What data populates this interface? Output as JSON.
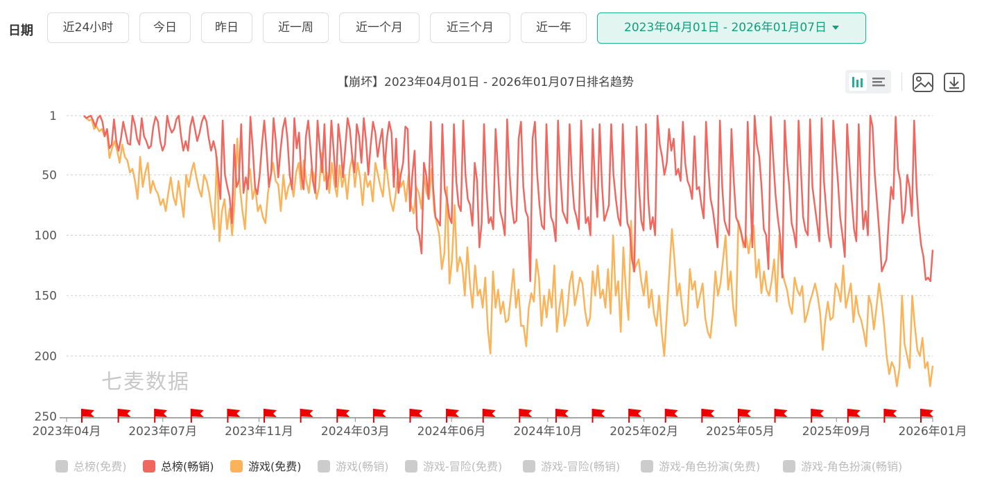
{
  "toolbar": {
    "date_label": "日期",
    "range_buttons": [
      "近24小时",
      "今日",
      "昨日",
      "近一周",
      "近一个月",
      "近三个月",
      "近一年"
    ],
    "date_range_value": "2023年04月01日 - 2026年01月07日"
  },
  "watermark": "七麦数据",
  "icons": {
    "bar_toggle": "bar-chart-icon",
    "list_toggle": "list-icon",
    "image_download": "image-icon",
    "download": "download-icon"
  },
  "colors": {
    "series_grossing": "#f0675f",
    "series_game_free": "#fbb35a",
    "inactive": "#cccccc",
    "accent": "#1ab394"
  },
  "chart_data": {
    "type": "line",
    "title": "【崩坏】2023年04月01日 - 2026年01月07日排名趋势",
    "y_inverted": true,
    "ylim": [
      1,
      250
    ],
    "y_ticks": [
      "1",
      "50",
      "100",
      "150",
      "200",
      "250"
    ],
    "x_tick_labels": [
      "2023年04月",
      "2023年07月",
      "2023年11月",
      "2024年03月",
      "2024年06月",
      "2024年10月",
      "2025年02月",
      "2025年05月",
      "2025年09月",
      "2026年01月"
    ],
    "legend": [
      {
        "name": "总榜(免费)",
        "active": false
      },
      {
        "name": "总榜(畅销)",
        "active": true
      },
      {
        "name": "游戏(免费)",
        "active": true
      },
      {
        "name": "游戏(畅销)",
        "active": false
      },
      {
        "name": "游戏-冒险(免费)",
        "active": false
      },
      {
        "name": "游戏-冒险(畅销)",
        "active": false
      },
      {
        "name": "游戏-角色扮演(免费)",
        "active": false
      },
      {
        "name": "游戏-角色扮演(畅销)",
        "active": false
      }
    ],
    "series": [
      {
        "name": "总榜(畅销)",
        "values": [
          1,
          3,
          2,
          1,
          5,
          10,
          3,
          1,
          6,
          18,
          12,
          28,
          25,
          4,
          22,
          30,
          20,
          6,
          15,
          24,
          25,
          1,
          8,
          20,
          25,
          3,
          18,
          22,
          28,
          26,
          10,
          2,
          6,
          22,
          30,
          25,
          1,
          10,
          15,
          12,
          4,
          1,
          18,
          30,
          22,
          30,
          10,
          2,
          12,
          22,
          15,
          6,
          1,
          6,
          20,
          30,
          22,
          30,
          48,
          70,
          5,
          50,
          60,
          68,
          90,
          25,
          60,
          55,
          8,
          65,
          52,
          62,
          2,
          28,
          60,
          66,
          50,
          25,
          5,
          30,
          60,
          48,
          3,
          22,
          52,
          30,
          12,
          3,
          20,
          50,
          62,
          3,
          28,
          15,
          50,
          62,
          18,
          5,
          28,
          55,
          65,
          5,
          28,
          48,
          8,
          62,
          50,
          5,
          30,
          60,
          8,
          25,
          52,
          28,
          3,
          12,
          35,
          48,
          8,
          18,
          40,
          3,
          22,
          50,
          25,
          6,
          15,
          35,
          22,
          12,
          45,
          20,
          6,
          15,
          60,
          20,
          65,
          50,
          40,
          10,
          12,
          80,
          50,
          30,
          95,
          100,
          115,
          40,
          50,
          70,
          6,
          60,
          85,
          88,
          92,
          8,
          62,
          70,
          85,
          90,
          8,
          55,
          75,
          80,
          5,
          50,
          70,
          75,
          92,
          40,
          55,
          110,
          90,
          8,
          60,
          90,
          85,
          95,
          12,
          45,
          80,
          88,
          100,
          4,
          48,
          75,
          90,
          88,
          20,
          6,
          60,
          80,
          85,
          138,
          20,
          6,
          50,
          75,
          92,
          95,
          8,
          60,
          85,
          90,
          105,
          5,
          50,
          80,
          85,
          90,
          8,
          52,
          78,
          85,
          95,
          5,
          55,
          90,
          85,
          100,
          12,
          60,
          85,
          8,
          58,
          88,
          82,
          75,
          8,
          50,
          70,
          85,
          92,
          8,
          60,
          90,
          95,
          120,
          130,
          10,
          60,
          88,
          96,
          8,
          70,
          95,
          85,
          100,
          1,
          25,
          35,
          50,
          40,
          12,
          30,
          20,
          50,
          45,
          55,
          6,
          40,
          55,
          60,
          70,
          18,
          62,
          60,
          75,
          86,
          6,
          45,
          70,
          80,
          95,
          110,
          5,
          60,
          88,
          95,
          100,
          12,
          55,
          85,
          90,
          96,
          105,
          110,
          6,
          55,
          110,
          1,
          25,
          35,
          60,
          95,
          100,
          128,
          2,
          35,
          65,
          85,
          100,
          135,
          5,
          40,
          60,
          90,
          98,
          110,
          5,
          45,
          85,
          96,
          100,
          4,
          60,
          75,
          90,
          105,
          3,
          55,
          80,
          100,
          110,
          5,
          30,
          55,
          85,
          100,
          118,
          8,
          40,
          70,
          95,
          105,
          8,
          55,
          95,
          80,
          100,
          1,
          10,
          50,
          75,
          100,
          130,
          125,
          120,
          88,
          60,
          70,
          2,
          45,
          55,
          90,
          80,
          50,
          60,
          84,
          5,
          60,
          90,
          108,
          118,
          137,
          135,
          138,
          112
        ],
        "color": "#f0675f"
      },
      {
        "name": "游戏(免费)",
        "values": [
          1,
          3,
          5,
          4,
          12,
          10,
          14,
          12,
          18,
          15,
          36,
          28,
          22,
          30,
          40,
          25,
          35,
          38,
          48,
          45,
          55,
          70,
          35,
          60,
          48,
          40,
          65,
          55,
          62,
          66,
          75,
          70,
          80,
          65,
          52,
          68,
          75,
          55,
          70,
          85,
          50,
          60,
          48,
          40,
          52,
          62,
          68,
          50,
          55,
          65,
          80,
          95,
          35,
          105,
          80,
          70,
          95,
          78,
          100,
          70,
          20,
          60,
          80,
          95,
          55,
          45,
          70,
          60,
          80,
          75,
          85,
          90,
          65,
          52,
          40,
          55,
          58,
          80,
          50,
          70,
          60,
          55,
          68,
          48,
          40,
          62,
          38,
          55,
          65,
          45,
          50,
          70,
          60,
          32,
          55,
          48,
          65,
          40,
          58,
          68,
          42,
          60,
          50,
          70,
          45,
          35,
          60,
          40,
          52,
          75,
          48,
          60,
          55,
          72,
          40,
          50,
          60,
          68,
          38,
          55,
          72,
          80,
          65,
          45,
          60,
          55,
          72,
          50,
          75,
          82,
          60,
          65,
          78,
          50,
          65,
          70,
          45,
          80,
          90,
          100,
          128,
          115,
          60,
          140,
          120,
          75,
          130,
          118,
          125,
          150,
          110,
          140,
          160,
          125,
          150,
          145,
          160,
          135,
          178,
          198,
          130,
          160,
          145,
          165,
          155,
          172,
          170,
          150,
          128,
          160,
          145,
          175,
          175,
          192,
          160,
          148,
          155,
          120,
          135,
          175,
          150,
          168,
          145,
          160,
          125,
          180,
          160,
          145,
          175,
          165,
          140,
          130,
          158,
          148,
          135,
          140,
          162,
          175,
          168,
          130,
          150,
          125,
          152,
          145,
          160,
          128,
          165,
          100,
          150,
          138,
          180,
          110,
          145,
          170,
          88,
          130,
          125,
          120,
          138,
          150,
          130,
          160,
          145,
          165,
          175,
          150,
          180,
          200,
          165,
          130,
          95,
          120,
          150,
          140,
          160,
          175,
          172,
          128,
          145,
          138,
          160,
          150,
          140,
          168,
          180,
          185,
          165,
          130,
          150,
          140,
          120,
          100,
          145,
          130,
          160,
          175,
          88,
          98,
          110,
          100,
          115,
          100,
          92,
          135,
          120,
          148,
          130,
          145,
          150,
          138,
          120,
          155,
          100,
          128,
          138,
          145,
          158,
          165,
          135,
          145,
          150,
          142,
          172,
          165,
          155,
          148,
          140,
          150,
          165,
          195,
          170,
          155,
          170,
          168,
          140,
          145,
          155,
          125,
          160,
          150,
          140,
          172,
          150,
          165,
          170,
          180,
          192,
          150,
          158,
          178,
          160,
          140,
          155,
          175,
          200,
          215,
          205,
          210,
          225,
          210,
          150,
          190,
          200,
          210,
          150,
          175,
          195,
          200,
          185,
          210,
          205,
          225,
          208
        ],
        "color": "#fbb35a"
      }
    ]
  }
}
